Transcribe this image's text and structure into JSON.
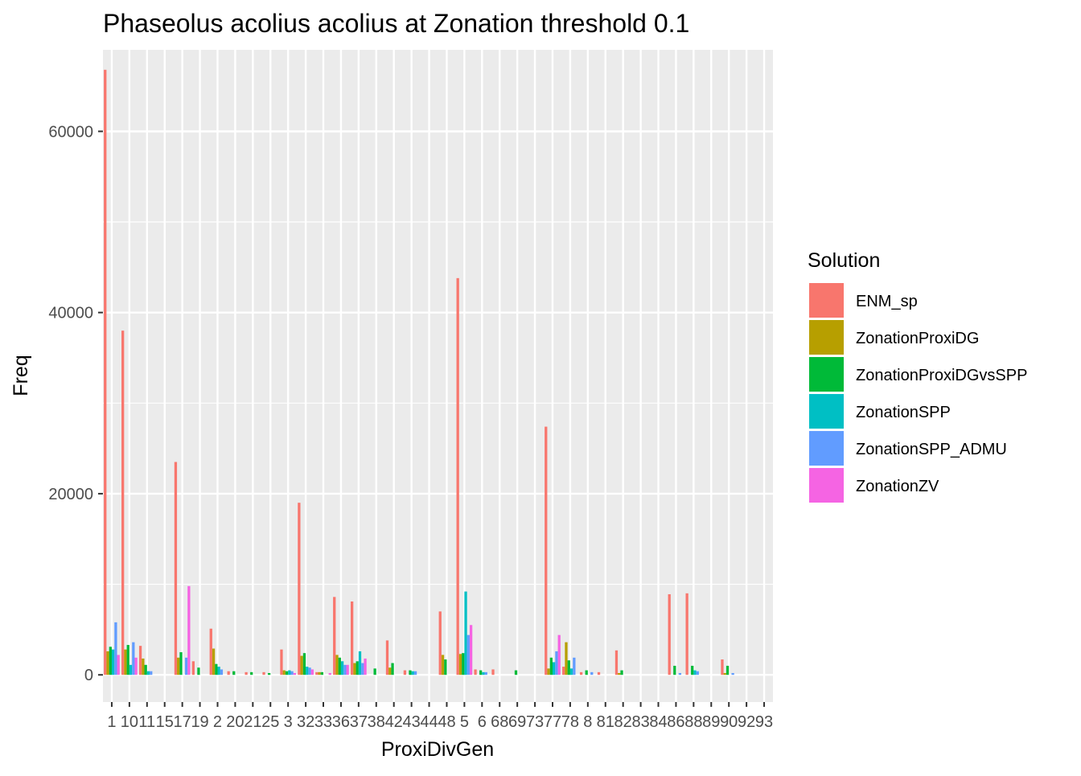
{
  "chart_data": {
    "type": "bar",
    "title": "Phaseolus acolius acolius at Zonation threshold 0.1",
    "xlabel": "ProxiDivGen",
    "ylabel": "Freq",
    "ylim": [
      -3000,
      69000
    ],
    "yticks": [
      0,
      20000,
      40000,
      60000
    ],
    "ytick_labels": [
      "0",
      "20000",
      "40000",
      "60000"
    ],
    "grid": true,
    "legend_title": "Solution",
    "legend_position": "right",
    "categories": [
      "1",
      "10",
      "11",
      "15",
      "17",
      "19",
      "2",
      "20",
      "21",
      "25",
      "3",
      "32",
      "33",
      "36",
      "37",
      "38",
      "42",
      "43",
      "44",
      "48",
      "5",
      "6",
      "68",
      "69",
      "73",
      "77",
      "78",
      "8",
      "81",
      "82",
      "83",
      "84",
      "86",
      "88",
      "89",
      "90",
      "92",
      "93"
    ],
    "series": [
      {
        "name": "ENM_sp",
        "color": "#F8766D",
        "values": [
          66800,
          38000,
          3200,
          0,
          23500,
          1500,
          5100,
          400,
          300,
          300,
          2800,
          19000,
          300,
          8600,
          8100,
          0,
          3800,
          500,
          0,
          7000,
          43800,
          600,
          600,
          0,
          0,
          27400,
          900,
          300,
          300,
          2700,
          0,
          0,
          8900,
          9000,
          0,
          1700,
          0,
          0
        ]
      },
      {
        "name": "ZonationProxiDG",
        "color": "#B79F00",
        "values": [
          2600,
          2800,
          1800,
          0,
          1900,
          0,
          2900,
          0,
          0,
          0,
          500,
          2100,
          300,
          2200,
          1300,
          0,
          800,
          0,
          0,
          2200,
          2300,
          0,
          0,
          0,
          0,
          700,
          3600,
          0,
          0,
          200,
          0,
          0,
          0,
          0,
          0,
          200,
          0,
          0
        ]
      },
      {
        "name": "ZonationProxiDGvsSPP",
        "color": "#00BA38",
        "values": [
          3100,
          3300,
          1100,
          0,
          2500,
          800,
          1200,
          400,
          300,
          200,
          400,
          2400,
          300,
          1900,
          1500,
          700,
          1300,
          500,
          0,
          1700,
          2400,
          500,
          0,
          500,
          0,
          1900,
          1600,
          500,
          0,
          500,
          0,
          0,
          1000,
          1000,
          0,
          1000,
          0,
          0
        ]
      },
      {
        "name": "ZonationSPP",
        "color": "#00BFC4",
        "values": [
          2800,
          1100,
          400,
          0,
          0,
          0,
          900,
          0,
          0,
          0,
          500,
          900,
          0,
          1500,
          2600,
          0,
          0,
          400,
          0,
          0,
          9200,
          300,
          0,
          0,
          0,
          1400,
          700,
          0,
          0,
          0,
          0,
          0,
          0,
          500,
          0,
          0,
          0,
          0
        ]
      },
      {
        "name": "ZonationSPP_ADMU",
        "color": "#619CFF",
        "values": [
          5800,
          3600,
          400,
          0,
          1900,
          0,
          600,
          0,
          0,
          0,
          400,
          800,
          0,
          1100,
          1300,
          0,
          0,
          400,
          0,
          0,
          4400,
          300,
          0,
          0,
          0,
          2600,
          1900,
          300,
          0,
          0,
          0,
          0,
          200,
          400,
          0,
          200,
          0,
          0
        ]
      },
      {
        "name": "ZonationZV",
        "color": "#F564E3",
        "values": [
          2200,
          1900,
          0,
          0,
          9800,
          0,
          0,
          0,
          0,
          0,
          200,
          600,
          200,
          1100,
          1800,
          0,
          0,
          0,
          0,
          0,
          5500,
          0,
          0,
          0,
          0,
          4400,
          0,
          0,
          0,
          0,
          0,
          0,
          0,
          0,
          0,
          0,
          0,
          0
        ]
      }
    ]
  }
}
